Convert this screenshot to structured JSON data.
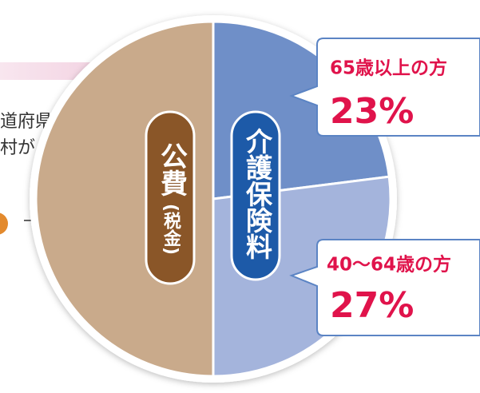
{
  "chart_data": {
    "type": "pie",
    "categories": [
      "65歳以上の方",
      "40〜64歳の方",
      "公費"
    ],
    "values": [
      23,
      27,
      50
    ],
    "value_labels": [
      "23%",
      "27%",
      null
    ],
    "colors": [
      "#6f8fc8",
      "#a4b4dc",
      "#c9aa8b"
    ],
    "annotations": [
      "(税金)",
      "介護保険料",
      "道府県・",
      "村が"
    ]
  }
}
